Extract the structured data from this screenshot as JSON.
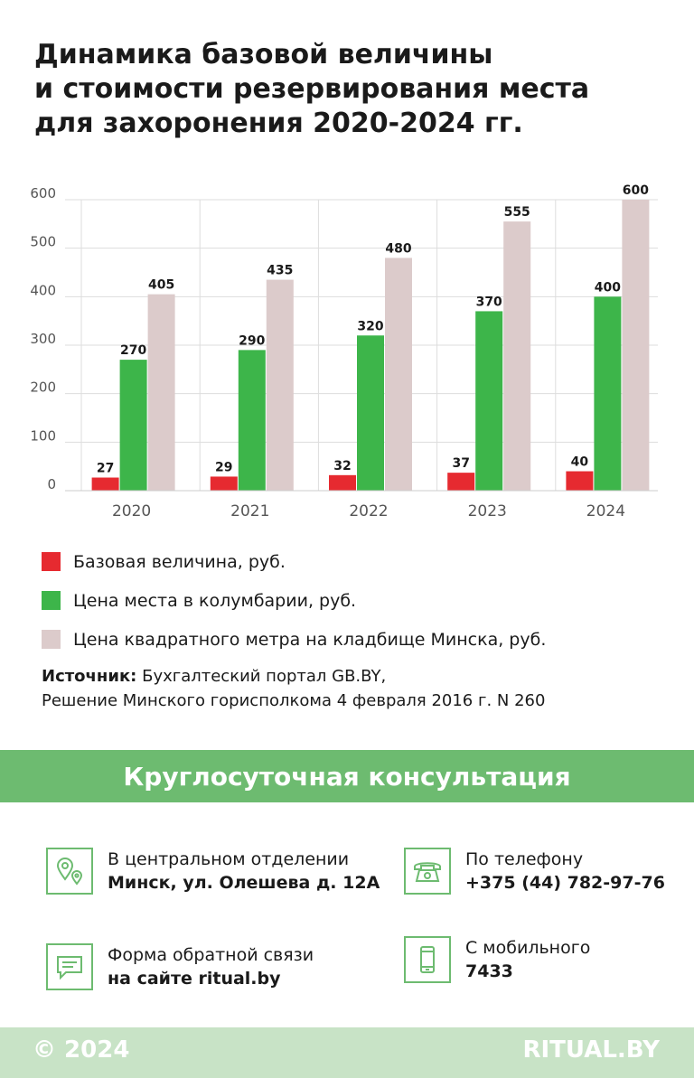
{
  "title": {
    "lines": [
      "Динамика базовой величины",
      "и стоимости резервирования места",
      "для захоронения 2020-2024 гг."
    ]
  },
  "chart_data": {
    "type": "bar",
    "categories": [
      "2020",
      "2021",
      "2022",
      "2023",
      "2024"
    ],
    "series": [
      {
        "name": "Базовая величина, руб.",
        "color": "#e62a30",
        "values": [
          27,
          29,
          32,
          37,
          40
        ]
      },
      {
        "name": "Цена места в колумбарии, руб.",
        "color": "#3db54a",
        "values": [
          270,
          290,
          320,
          370,
          400
        ]
      },
      {
        "name": "Цена квадратного метра на кладбище Минска, руб.",
        "color": "#dccbcb",
        "values": [
          405,
          435,
          480,
          555,
          600
        ]
      }
    ],
    "yticks": [
      0,
      100,
      200,
      300,
      400,
      500,
      600
    ],
    "ylim": [
      0,
      600
    ],
    "grid": true,
    "legend_position": "bottom"
  },
  "legend": {
    "items": [
      {
        "label": "Базовая величина, руб.",
        "color": "#e62a30"
      },
      {
        "label": "Цена места в колумбарии, руб.",
        "color": "#3db54a"
      },
      {
        "label": "Цена квадратного метра на кладбище Минска, руб.",
        "color": "#dccbcb"
      }
    ]
  },
  "source": {
    "label": "Источник:",
    "line1": "Бухгалтеский портал GB.BY,",
    "line2": "Решение Минского горисполкома 4 февраля 2016 г. N 260"
  },
  "banner": {
    "text": "Круглосуточная консультация"
  },
  "contacts": {
    "office": {
      "icon": "map-pin-icon",
      "line1": "В центральном отделении",
      "line2": "Минск, ул. Олешева д. 12А"
    },
    "phone": {
      "icon": "telephone-icon",
      "line1": "По телефону",
      "line2": "+375 (44) 782-97-76"
    },
    "form": {
      "icon": "chat-bubble-icon",
      "line1": "Форма обратной связи",
      "line2": "на сайте ritual.by"
    },
    "mobile": {
      "icon": "mobile-phone-icon",
      "line1": "С мобильного",
      "line2": "7433"
    }
  },
  "footer": {
    "copyright": "© 2024",
    "brand": "RITUAL.BY"
  },
  "colors": {
    "accent": "#6dbb70",
    "footer_bg": "#c8e3c6"
  }
}
